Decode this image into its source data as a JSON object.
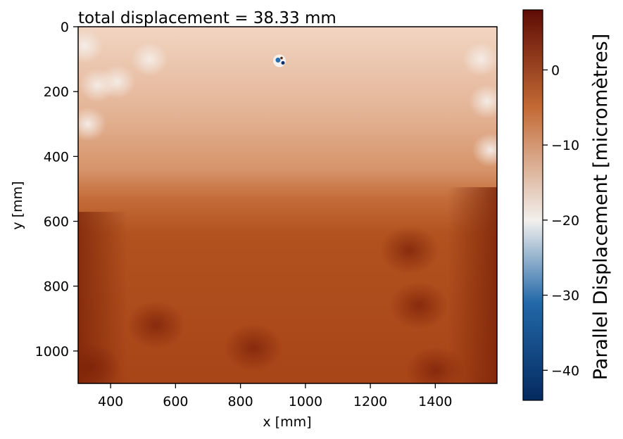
{
  "chart_data": {
    "type": "heatmap",
    "title": "total displacement = 38.33 mm",
    "xlabel": "x [mm]",
    "ylabel": "y [mm]",
    "xlim": [
      300,
      1590
    ],
    "ylim": [
      1100,
      0
    ],
    "x_ticks": [
      400,
      600,
      800,
      1000,
      1200,
      1400
    ],
    "y_ticks": [
      0,
      200,
      400,
      600,
      800,
      1000
    ],
    "colorbar": {
      "label": "Parallel Displacement  [micromètres]",
      "range": [
        -44,
        8
      ],
      "ticks": [
        0,
        -10,
        -20,
        -30,
        -40
      ],
      "colormap": "diverging blue-white-brown",
      "colors": [
        "#052a60",
        "#2268a8",
        "#f2f0ed",
        "#c36a35",
        "#5e0c04"
      ]
    },
    "field": {
      "top_value": -15,
      "bottom_value": 0,
      "transition_y": 560,
      "hotspot": {
        "x": 920,
        "y": 105,
        "min_value": -42
      },
      "light_blobs_left": [
        {
          "x": 320,
          "y": 60,
          "value": -19
        },
        {
          "x": 360,
          "y": 180,
          "value": -18
        },
        {
          "x": 420,
          "y": 170,
          "value": -17
        },
        {
          "x": 520,
          "y": 100,
          "value": -17
        },
        {
          "x": 330,
          "y": 300,
          "value": -18
        }
      ],
      "light_blobs_right": [
        {
          "x": 1540,
          "y": 100,
          "value": -18
        },
        {
          "x": 1560,
          "y": 230,
          "value": -18
        },
        {
          "x": 1570,
          "y": 380,
          "value": -17
        }
      ],
      "dark_blobs": [
        {
          "x": 540,
          "y": 920,
          "value": 5
        },
        {
          "x": 840,
          "y": 990,
          "value": 5
        },
        {
          "x": 1320,
          "y": 690,
          "value": 4
        },
        {
          "x": 1350,
          "y": 860,
          "value": 4
        },
        {
          "x": 1400,
          "y": 1060,
          "value": 5
        },
        {
          "x": 340,
          "y": 1050,
          "value": 5
        }
      ]
    }
  }
}
